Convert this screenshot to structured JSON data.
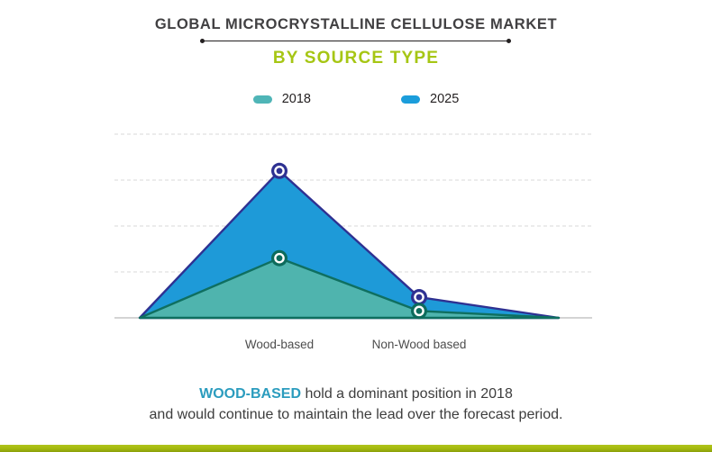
{
  "header": {
    "title": "GLOBAL MICROCRYSTALLINE CELLULOSE MARKET",
    "subtitle": "BY SOURCE TYPE",
    "subtitle_color": "#a6c614"
  },
  "legend": {
    "items": [
      {
        "label": "2018",
        "color": "#4fb5b7"
      },
      {
        "label": "2025",
        "color": "#1b9ddb"
      }
    ]
  },
  "chart_data": {
    "type": "area",
    "categories": [
      "Wood-based",
      "Non-Wood based"
    ],
    "x": [
      0,
      1,
      2,
      3
    ],
    "category_x": [
      1,
      2
    ],
    "series": [
      {
        "name": "2025",
        "values": [
          0,
          3.2,
          0.45,
          0
        ],
        "fill": "#1e9ad8",
        "stroke": "#2e3192",
        "marker": "#2e3192"
      },
      {
        "name": "2018",
        "values": [
          0,
          1.3,
          0.15,
          0
        ],
        "fill": "#4fb4ae",
        "stroke": "#0f6f60",
        "marker": "#0d6b5c"
      }
    ],
    "ylim": [
      0,
      4
    ],
    "y_tick_labels_visible": false,
    "gridlines": {
      "style": "dashed",
      "count": 4,
      "color": "#dadada"
    },
    "baseline_color": "#c6c6c6",
    "axis_label_color": "#4d4d4d",
    "legend_position": "top",
    "title": "GLOBAL MICROCRYSTALLINE CELLULOSE MARKET",
    "subtitle": "BY SOURCE TYPE",
    "units": "relative units; no numeric axis labels shown (gridline spacing = 1)"
  },
  "caption": {
    "highlight": "WOOD-BASED",
    "highlight_color": "#2b9cbe",
    "line1_rest": " hold a dominant position in 2018",
    "line2": "and would continue to maintain the lead over the forecast period."
  },
  "footer": {
    "bar_color": "#a3b90e"
  }
}
